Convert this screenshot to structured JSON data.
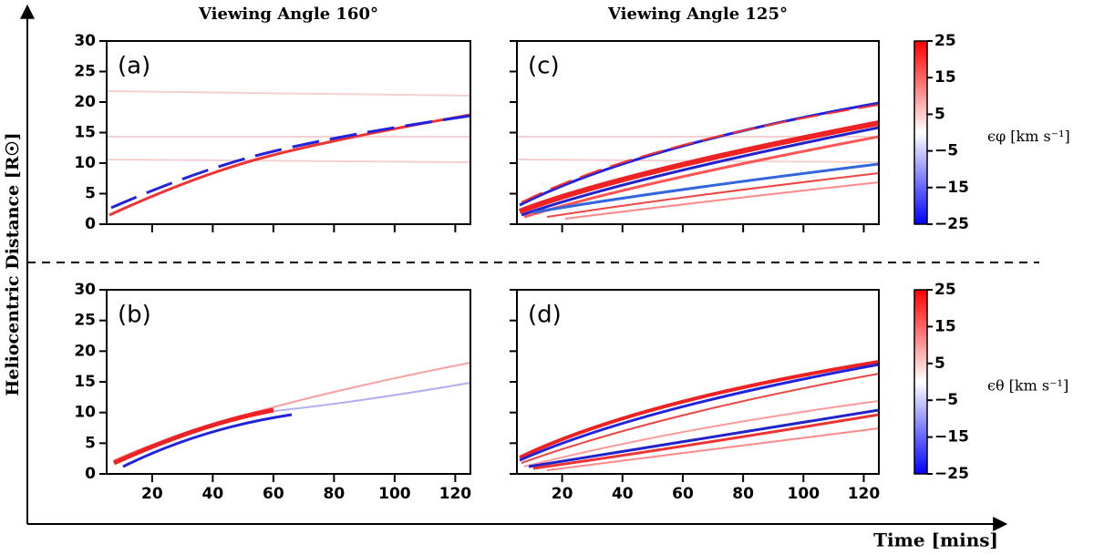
{
  "chart_data": {
    "type": "heatmap",
    "ylabel": "Heliocentric Distance [R☉]",
    "xlabel": "Time [mins]",
    "xlim": [
      5,
      125
    ],
    "ylim": [
      0,
      30
    ],
    "xticks": [
      20,
      40,
      60,
      80,
      100,
      120
    ],
    "yticks": [
      0,
      5,
      10,
      15,
      20,
      25,
      30
    ],
    "columns": [
      {
        "title": "Viewing Angle 160°"
      },
      {
        "title": "Viewing Angle 125°"
      }
    ],
    "panels": [
      {
        "label": "(a)"
      },
      {
        "label": "(c)"
      },
      {
        "label": "(b)"
      },
      {
        "label": "(d)"
      }
    ],
    "colorbars": [
      {
        "label": "ϵφ [km s⁻¹]",
        "clim": [
          -25,
          25
        ],
        "colors": [
          "#0000ff",
          "#ffffff",
          "#ff0000"
        ],
        "ticks": [
          25,
          15,
          5,
          {
            "value": -5,
            "label": "−5"
          },
          {
            "value": -15,
            "label": "−15"
          },
          {
            "value": -25,
            "label": "−25"
          }
        ]
      },
      {
        "label": "ϵθ [km s⁻¹]",
        "clim": [
          -25,
          25
        ],
        "colors": [
          "#0000ff",
          "#ffffff",
          "#ff0000"
        ],
        "ticks": [
          25,
          15,
          5,
          {
            "value": -5,
            "label": "−5"
          },
          {
            "value": -15,
            "label": "−15"
          },
          {
            "value": -25,
            "label": "−25"
          }
        ]
      }
    ]
  }
}
